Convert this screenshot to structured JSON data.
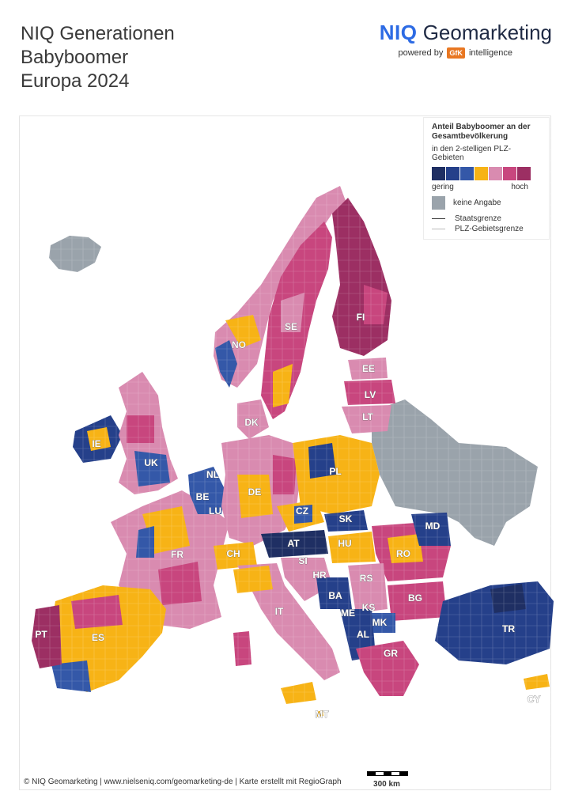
{
  "title": {
    "line1": "NIQ Generationen",
    "line2": "Babyboomer",
    "line3": "Europa 2024"
  },
  "brand": {
    "niq": "NIQ",
    "name": "Geomarketing",
    "powered_by": "powered by",
    "gfk": "GfK",
    "intelligence": "intelligence"
  },
  "legend": {
    "title": "Anteil Babyboomer an der Gesamtbevölkerung",
    "subtitle": "in den 2-stelligen PLZ-Gebieten",
    "scale_colors": [
      "#1f2f63",
      "#25408a",
      "#3458a8",
      "#f7b316",
      "#d98bb0",
      "#c8467e",
      "#9c2f63"
    ],
    "low_label": "gering",
    "high_label": "hoch",
    "no_data_label": "keine Angabe",
    "no_data_color": "#9aa3ab",
    "state_border_label": "Staatsgrenze",
    "plz_border_label": "PLZ-Gebietsgrenze"
  },
  "country_labels": [
    "FI",
    "SE",
    "NO",
    "EE",
    "LV",
    "LT",
    "DK",
    "IE",
    "UK",
    "NL",
    "BE",
    "LU",
    "DE",
    "PL",
    "CZ",
    "SK",
    "MD",
    "AT",
    "HU",
    "RO",
    "FR",
    "CH",
    "SI",
    "HR",
    "RS",
    "BA",
    "BG",
    "KS",
    "ME",
    "MK",
    "AL",
    "IT",
    "PT",
    "ES",
    "GR",
    "TR",
    "CY",
    "MT"
  ],
  "footer": "© NIQ Geomarketing | www.nielseniq.com/geomarketing-de | Karte erstellt mit RegioGraph",
  "scale": {
    "label": "300 km"
  }
}
